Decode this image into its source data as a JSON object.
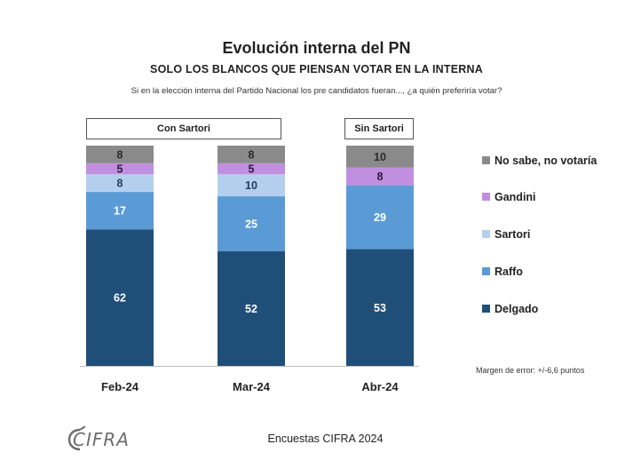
{
  "chart_data": {
    "type": "bar",
    "stacked": true,
    "title": "Evolución interna del PN",
    "subtitle": "SOLO LOS BLANCOS QUE PIENSAN VOTAR EN LA INTERNA",
    "question": "Si en la elección interna del Partido Nacional los pre candidatos fueran..., ¿a quién preferiría votar?",
    "categories": [
      "Feb-24",
      "Mar-24",
      "Abr-24"
    ],
    "groups": [
      {
        "label": "Con Sartori",
        "categories": [
          "Feb-24",
          "Mar-24"
        ]
      },
      {
        "label": "Sin Sartori",
        "categories": [
          "Abr-24"
        ]
      }
    ],
    "series": [
      {
        "name": "Delgado",
        "color": "#1f4e79",
        "label_color": "#ffffff",
        "values": [
          62,
          52,
          53
        ]
      },
      {
        "name": "Raffo",
        "color": "#5b9bd5",
        "label_color": "#ffffff",
        "values": [
          17,
          25,
          29
        ]
      },
      {
        "name": "Sartori",
        "color": "#b4cfee",
        "label_color": "#1f3a5f",
        "values": [
          8,
          10,
          null
        ]
      },
      {
        "name": "Gandini",
        "color": "#c08fe0",
        "label_color": "#2a1a3a",
        "values": [
          5,
          5,
          8
        ]
      },
      {
        "name": "No sabe, no votaría",
        "color": "#8a8a8a",
        "label_color": "#2a2a2a",
        "values": [
          8,
          8,
          10
        ]
      }
    ],
    "legend_order": [
      "No sabe, no votaría",
      "Gandini",
      "Sartori",
      "Raffo",
      "Delgado"
    ],
    "ylim": [
      0,
      100
    ],
    "xlabel": "",
    "ylabel": "",
    "grid": false,
    "legend_position": "right",
    "note": "Margen de error: +/-6,6 puntos"
  },
  "footer": {
    "source": "Encuestas CIFRA 2024",
    "logo_text": "CIFRA"
  }
}
